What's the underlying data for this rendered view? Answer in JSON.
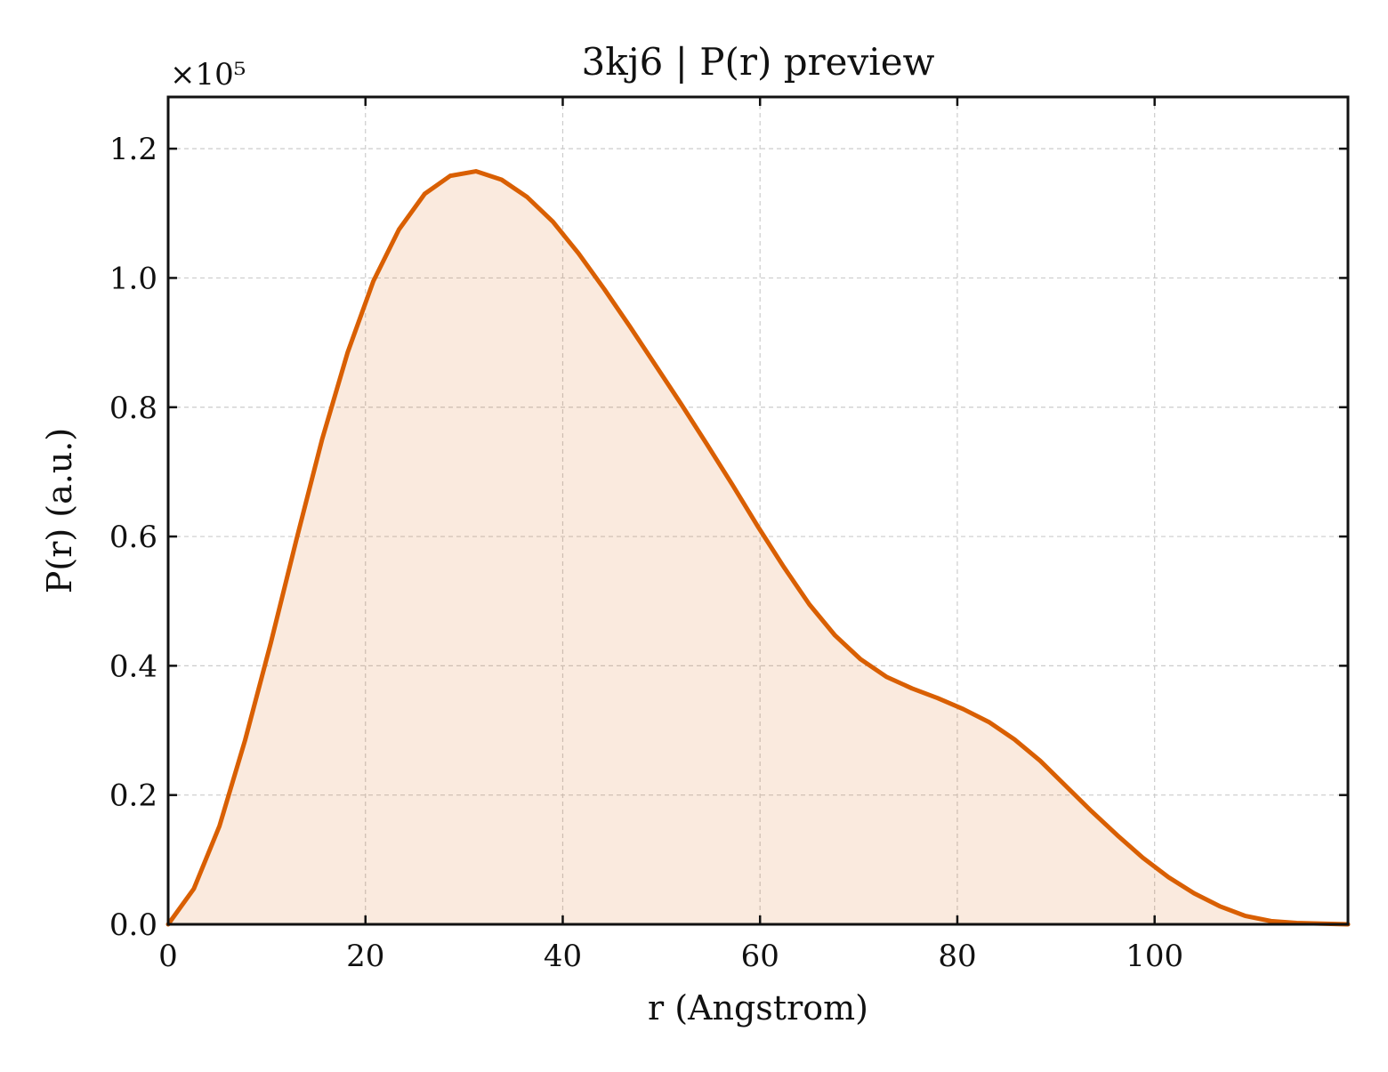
{
  "chart_data": {
    "type": "area",
    "title": "3kj6 | P(r) preview",
    "xlabel": "r (Angstrom)",
    "ylabel": "P(r) (a.u.)",
    "y_offset_label": "×10⁵",
    "y_scale": 100000,
    "xlim": [
      0,
      119.6
    ],
    "ylim": [
      0,
      1.28
    ],
    "xticks": [
      0,
      20,
      40,
      60,
      80,
      100
    ],
    "xtick_labels": [
      "0",
      "20",
      "40",
      "60",
      "80",
      "100"
    ],
    "yticks": [
      0,
      0.2,
      0.4,
      0.6,
      0.8,
      1.0,
      1.2
    ],
    "ytick_labels": [
      "0.0",
      "0.2",
      "0.4",
      "0.6",
      "0.8",
      "1.0",
      "1.2"
    ],
    "grid": true,
    "legend": "none",
    "series": [
      {
        "color": "#d95f02",
        "fill_color": "#d95f02",
        "fill_opacity": 0.13,
        "x": [
          0,
          2.6,
          5.2,
          7.8,
          10.4,
          13.0,
          15.6,
          18.2,
          20.8,
          23.4,
          26.0,
          28.6,
          31.2,
          33.8,
          36.4,
          39.0,
          41.6,
          44.2,
          46.8,
          49.4,
          52.0,
          54.6,
          57.2,
          59.8,
          62.4,
          65.0,
          67.6,
          70.2,
          72.8,
          75.4,
          78.0,
          80.6,
          83.2,
          85.8,
          88.4,
          91.0,
          93.6,
          96.2,
          98.8,
          101.4,
          104.0,
          106.6,
          109.2,
          111.8,
          114.4,
          117.0,
          119.6
        ],
        "y": [
          0.0,
          0.055,
          0.152,
          0.285,
          0.435,
          0.595,
          0.75,
          0.885,
          0.995,
          1.075,
          1.13,
          1.158,
          1.165,
          1.152,
          1.125,
          1.087,
          1.038,
          0.983,
          0.925,
          0.865,
          0.805,
          0.743,
          0.68,
          0.615,
          0.553,
          0.495,
          0.447,
          0.41,
          0.383,
          0.365,
          0.35,
          0.333,
          0.313,
          0.286,
          0.253,
          0.214,
          0.175,
          0.138,
          0.103,
          0.073,
          0.048,
          0.028,
          0.013,
          0.005,
          0.002,
          0.001,
          0.0
        ]
      }
    ]
  }
}
